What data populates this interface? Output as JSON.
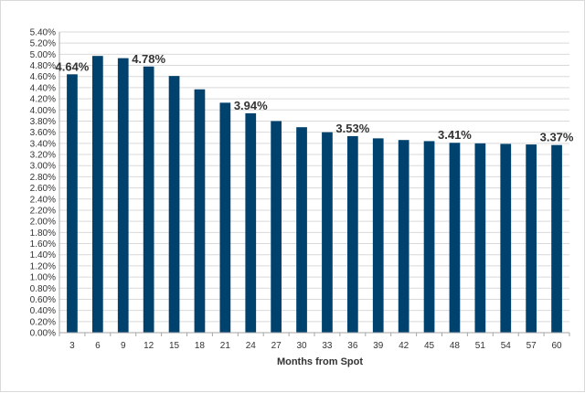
{
  "chart_data": {
    "type": "bar",
    "categories": [
      "3",
      "6",
      "9",
      "12",
      "15",
      "18",
      "21",
      "24",
      "27",
      "30",
      "33",
      "36",
      "39",
      "42",
      "45",
      "48",
      "51",
      "54",
      "57",
      "60"
    ],
    "values": [
      4.64,
      4.97,
      4.93,
      4.78,
      4.61,
      4.37,
      4.13,
      3.94,
      3.8,
      3.69,
      3.6,
      3.53,
      3.49,
      3.46,
      3.44,
      3.41,
      3.4,
      3.39,
      3.38,
      3.37
    ],
    "data_labels": [
      {
        "index": 0,
        "text": "4.64%"
      },
      {
        "index": 3,
        "text": "4.78%"
      },
      {
        "index": 7,
        "text": "3.94%"
      },
      {
        "index": 11,
        "text": "3.53%"
      },
      {
        "index": 15,
        "text": "3.41%"
      },
      {
        "index": 19,
        "text": "3.37%"
      }
    ],
    "ylim": [
      0,
      5.4
    ],
    "ytick_step": 0.2,
    "ytick_suffix": "%",
    "xlabel": "Months from Spot",
    "ylabel": "",
    "title": "",
    "grid": true,
    "legend": "none",
    "colors": {
      "bar": "#00426e",
      "grid": "#d9d9d9",
      "axis": "#a6a6a6",
      "text": "#333333"
    }
  }
}
